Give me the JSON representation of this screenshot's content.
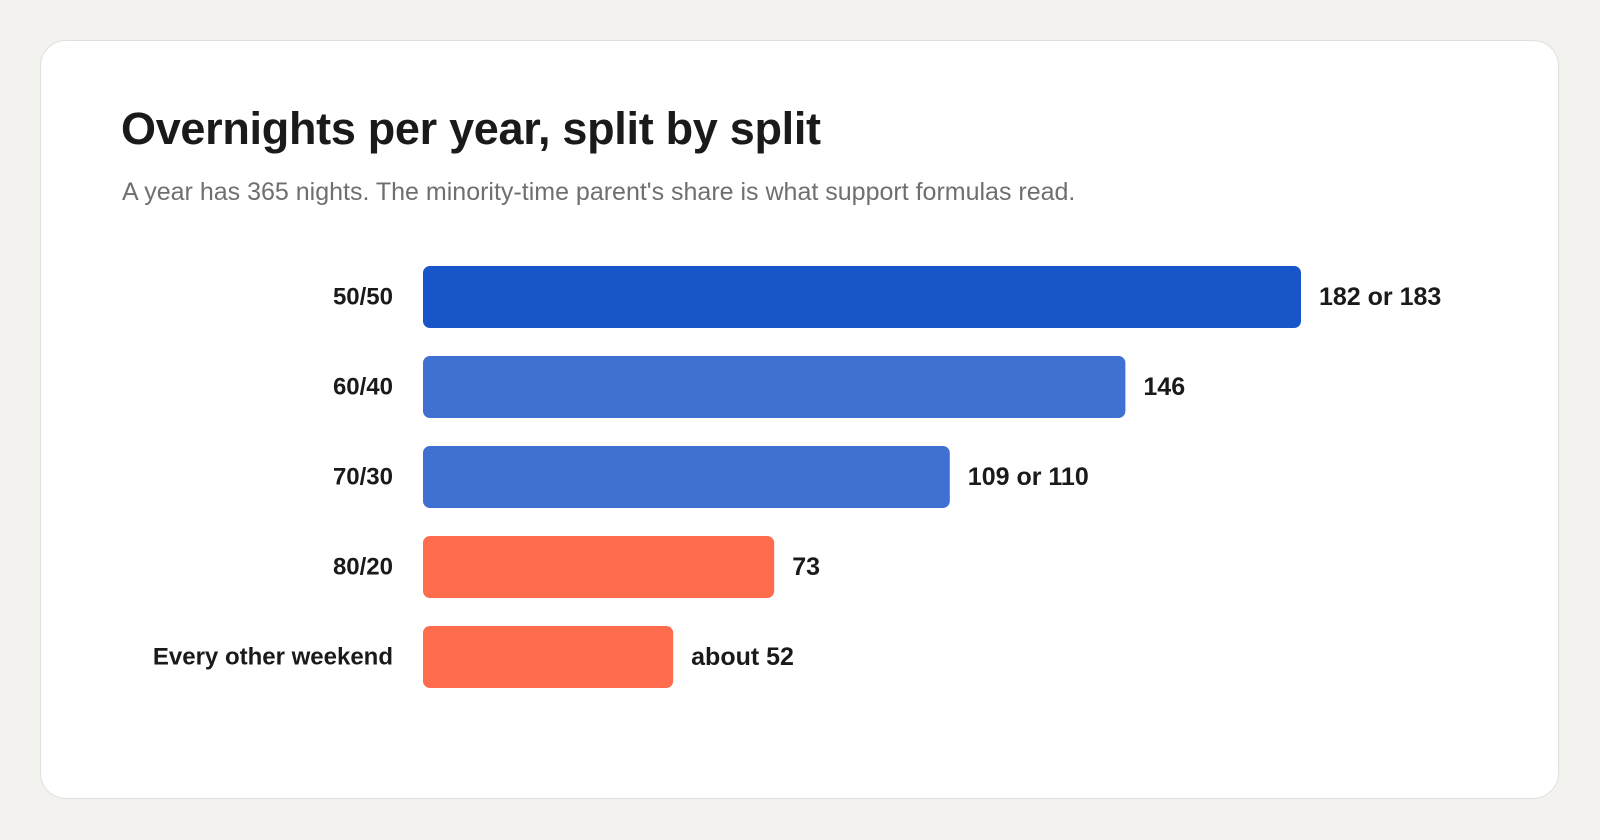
{
  "card": {
    "title": "Overnights per year, split by split",
    "subtitle": "A year has 365 nights. The minority-time parent's share is what support formulas read."
  },
  "colors": {
    "dark_blue": "#1755c8",
    "mid_blue": "#4170d3",
    "coral": "#ff6b4d"
  },
  "chart_data": {
    "type": "bar",
    "orientation": "horizontal",
    "title": "Overnights per year, split by split",
    "subtitle": "A year has 365 nights. The minority-time parent's share is what support formulas read.",
    "xlabel": "",
    "ylabel": "",
    "xlim": [
      0,
      182.5
    ],
    "grid": false,
    "legend": "none",
    "categories": [
      "50/50",
      "60/40",
      "70/30",
      "80/20",
      "Every other weekend"
    ],
    "values": [
      182.5,
      146,
      109.5,
      73,
      52
    ],
    "value_labels": [
      "182 or 183",
      "146",
      "109 or 110",
      "73",
      "about 52"
    ],
    "bar_colors": [
      "#1755c8",
      "#4170d3",
      "#4170d3",
      "#ff6b4d",
      "#ff6b4d"
    ]
  }
}
